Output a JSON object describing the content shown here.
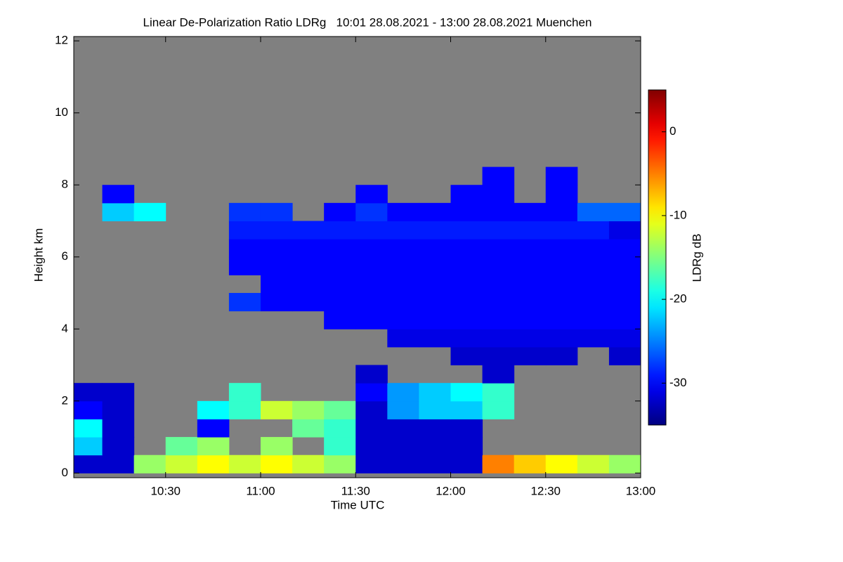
{
  "chart_data": {
    "type": "heatmap",
    "title": "Linear De-Polarization Ratio LDRg   10:01 28.08.2021 - 13:00 28.08.2021 Muenchen",
    "x_label": "Time UTC",
    "y_label": "Height km",
    "colorbar_label": "LDRg dB",
    "colormap": "jet",
    "nodata_color": "#808080",
    "xlim": [
      10.0167,
      13.0
    ],
    "xticks": [
      {
        "value": 10.5,
        "label": "10:30"
      },
      {
        "value": 11,
        "label": "11:00"
      },
      {
        "value": 11.5,
        "label": "11:30"
      },
      {
        "value": 12,
        "label": "12:00"
      },
      {
        "value": 12.5,
        "label": "12:30"
      },
      {
        "value": 13,
        "label": "13:00"
      }
    ],
    "ylim": [
      -0.13,
      12.12
    ],
    "yticks": [
      0,
      2,
      4,
      6,
      8,
      10,
      12
    ],
    "clim": [
      -35,
      5
    ],
    "cticks": [
      0,
      -10,
      -20,
      -30
    ],
    "x_edges": [
      10.0167,
      10.1667,
      10.3333,
      10.5,
      10.6667,
      10.8333,
      11,
      11.1667,
      11.3333,
      11.5,
      11.6667,
      11.8333,
      12,
      12.1667,
      12.3333,
      12.5,
      12.6667,
      12.8333,
      13
    ],
    "y_edges": [
      0,
      0.5,
      1,
      1.5,
      2,
      2.5,
      3,
      3.5,
      4,
      4.5,
      5,
      5.5,
      6,
      6.5,
      7,
      7.5,
      8,
      8.5,
      9
    ],
    "z": [
      [
        -32,
        -32,
        -14,
        -12,
        -10,
        -12,
        -10,
        -12,
        -14,
        -32,
        -32,
        -32,
        -32,
        -5,
        -8,
        -10,
        -12,
        -14
      ],
      [
        -22,
        -32,
        null,
        -16,
        -14,
        null,
        -14,
        null,
        -18,
        -32,
        -32,
        -32,
        -32,
        null,
        null,
        null,
        null,
        null
      ],
      [
        -20,
        -32,
        null,
        null,
        -30,
        null,
        null,
        -16,
        -18,
        -32,
        -32,
        -32,
        -32,
        null,
        null,
        null,
        null,
        null
      ],
      [
        -30,
        -32,
        null,
        null,
        -20,
        -18,
        -12,
        -14,
        -16,
        -32,
        -24,
        -22,
        -22,
        -18,
        null,
        null,
        null,
        null
      ],
      [
        -32,
        -32,
        null,
        null,
        null,
        -18,
        null,
        null,
        null,
        -30,
        -24,
        -22,
        -20,
        -18,
        null,
        null,
        null,
        null
      ],
      [
        null,
        null,
        null,
        null,
        null,
        null,
        null,
        null,
        null,
        -32,
        null,
        null,
        null,
        -32,
        null,
        null,
        null,
        null
      ],
      [
        null,
        null,
        null,
        null,
        null,
        null,
        null,
        null,
        null,
        null,
        null,
        null,
        -32,
        -32,
        -32,
        -32,
        null,
        -32
      ],
      [
        null,
        null,
        null,
        null,
        null,
        null,
        null,
        null,
        null,
        null,
        -31,
        -31,
        -31,
        -31,
        -31,
        -31,
        -31,
        -31
      ],
      [
        null,
        null,
        null,
        null,
        null,
        null,
        null,
        null,
        -30,
        -30,
        -30,
        -30,
        -30,
        -30,
        -30,
        -30,
        -30,
        -30
      ],
      [
        null,
        null,
        null,
        null,
        null,
        -28,
        -30,
        -30,
        -30,
        -30,
        -30,
        -30,
        -30,
        -30,
        -30,
        -30,
        -30,
        -30
      ],
      [
        null,
        null,
        null,
        null,
        null,
        null,
        -30,
        -30,
        -30,
        -30,
        -30,
        -30,
        -30,
        -30,
        -30,
        -30,
        -30,
        -30
      ],
      [
        null,
        null,
        null,
        null,
        null,
        -30,
        -30,
        -30,
        -30,
        -30,
        -30,
        -30,
        -30,
        -30,
        -30,
        -30,
        -30,
        -30
      ],
      [
        null,
        null,
        null,
        null,
        null,
        -30,
        -30,
        -30,
        -30,
        -30,
        -30,
        -30,
        -30,
        -30,
        -30,
        -30,
        -30,
        -30
      ],
      [
        null,
        null,
        null,
        null,
        null,
        -29,
        -29,
        -29,
        -29,
        -29,
        -29,
        -29,
        -29,
        -29,
        -29,
        -29,
        -29,
        -31
      ],
      [
        null,
        -22,
        -20,
        null,
        null,
        -28,
        -28,
        null,
        -30,
        -28,
        -30,
        -30,
        -30,
        -30,
        -30,
        -30,
        -26,
        -26
      ],
      [
        null,
        -30,
        null,
        null,
        null,
        null,
        null,
        null,
        null,
        -30,
        null,
        null,
        -30,
        -30,
        null,
        -30,
        null,
        null
      ],
      [
        null,
        null,
        null,
        null,
        null,
        null,
        null,
        null,
        null,
        null,
        null,
        null,
        null,
        -30,
        null,
        -30,
        null,
        null
      ],
      [
        null,
        null,
        null,
        null,
        null,
        null,
        null,
        null,
        null,
        null,
        null,
        null,
        null,
        null,
        null,
        null,
        null,
        null
      ]
    ]
  }
}
